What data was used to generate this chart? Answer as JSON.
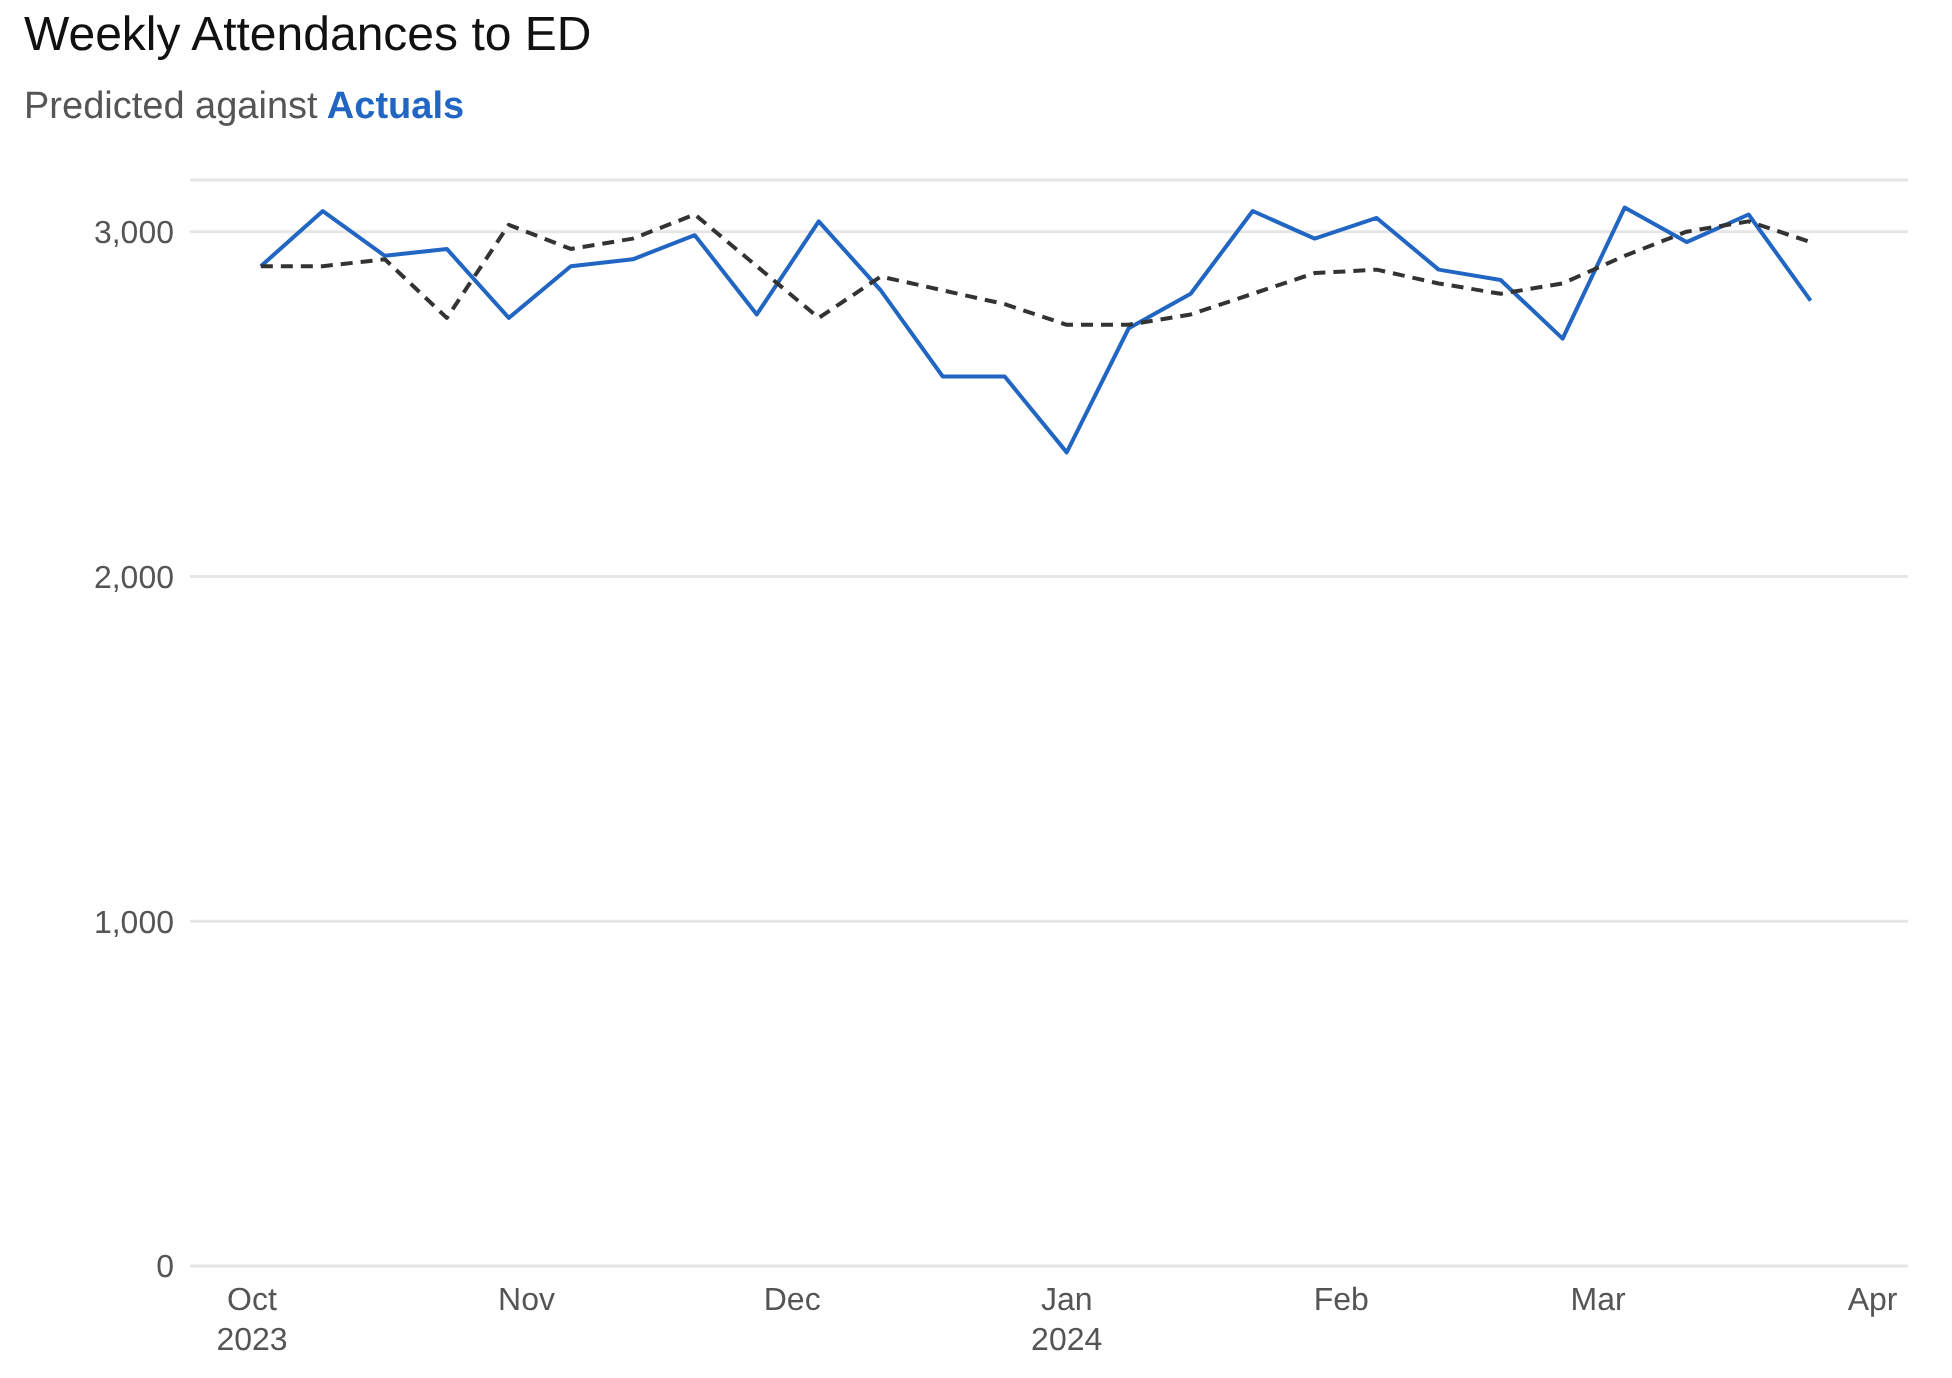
{
  "chart_data": {
    "type": "line",
    "title": "Weekly Attendances to ED",
    "subtitle": "Predicted against",
    "x": [
      "2023-10-02",
      "2023-10-09",
      "2023-10-16",
      "2023-10-23",
      "2023-10-30",
      "2023-11-06",
      "2023-11-13",
      "2023-11-20",
      "2023-11-27",
      "2023-12-04",
      "2023-12-11",
      "2023-12-18",
      "2023-12-25",
      "2024-01-01",
      "2024-01-08",
      "2024-01-15",
      "2024-01-22",
      "2024-01-29",
      "2024-02-05",
      "2024-02-12",
      "2024-02-19",
      "2024-02-26",
      "2024-03-04",
      "2024-03-11",
      "2024-03-18",
      "2024-03-25"
    ],
    "series": [
      {
        "name": "Actuals",
        "color": "#2166c2",
        "line_style": "solid",
        "values": [
          2900,
          3060,
          2930,
          2950,
          2750,
          2900,
          2920,
          2990,
          2760,
          3030,
          2830,
          2580,
          2580,
          2360,
          2720,
          2820,
          3060,
          2980,
          3040,
          2890,
          2860,
          2690,
          3070,
          2970,
          3050,
          2800
        ]
      },
      {
        "color": "#333333",
        "line_style": "dashed",
        "values": [
          2900,
          2900,
          2920,
          2750,
          3020,
          2950,
          2980,
          3050,
          2900,
          2750,
          2870,
          2830,
          2790,
          2730,
          2730,
          2760,
          2820,
          2880,
          2890,
          2850,
          2820,
          2850,
          2930,
          3000,
          3030,
          2970
        ]
      }
    ],
    "xlim": [
      "2023-09-24",
      "2024-04-05"
    ],
    "xticks": [
      {
        "value": "2023-10-01",
        "label": "Oct\n2023"
      },
      {
        "value": "2023-11-01",
        "label": "Nov"
      },
      {
        "value": "2023-12-01",
        "label": "Dec"
      },
      {
        "value": "2024-01-01",
        "label": "Jan\n2024"
      },
      {
        "value": "2024-02-01",
        "label": "Feb"
      },
      {
        "value": "2024-03-01",
        "label": "Mar"
      },
      {
        "value": "2024-04-01",
        "label": "Apr"
      }
    ],
    "ylim": [
      0,
      3150
    ],
    "yticks": [
      {
        "value": 0,
        "label": "0"
      },
      {
        "value": 1000,
        "label": "1,000"
      },
      {
        "value": 2000,
        "label": "2,000"
      },
      {
        "value": 3000,
        "label": "3,000"
      }
    ],
    "grid": "y"
  }
}
